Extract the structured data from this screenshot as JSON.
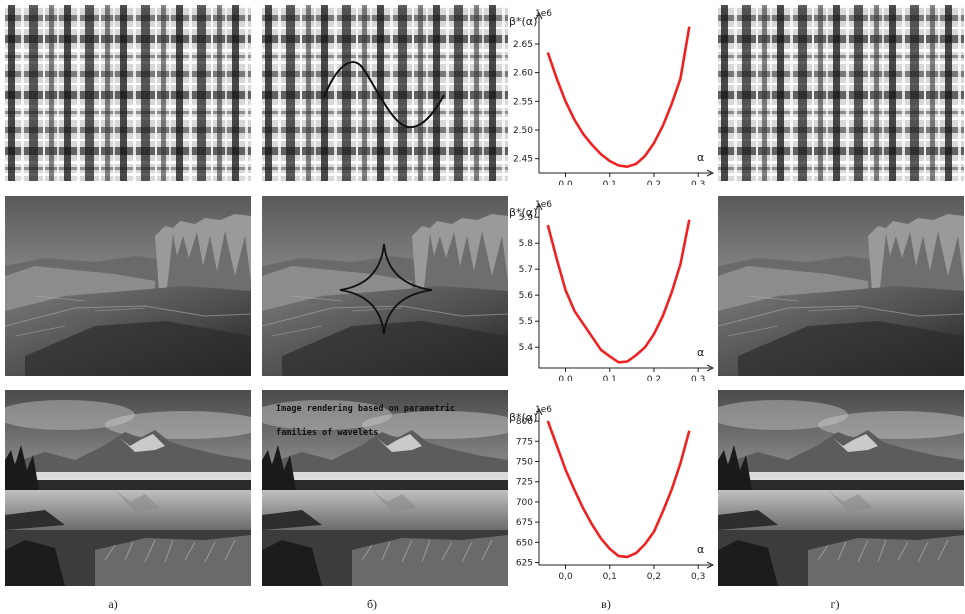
{
  "captions": [
    "а)",
    "б)",
    "в)",
    "г)"
  ],
  "overlay_text": {
    "line1": "Image rendering based on parametric",
    "line2": "families of wavelets"
  },
  "chart_data": [
    {
      "type": "line",
      "ylabel": "β*(α)",
      "xlabel": "α",
      "offset_label": "1e6",
      "color": "#ee2222",
      "x": [
        -0.04,
        -0.02,
        0.0,
        0.02,
        0.04,
        0.06,
        0.08,
        0.1,
        0.12,
        0.14,
        0.16,
        0.18,
        0.2,
        0.22,
        0.24,
        0.26,
        0.28
      ],
      "y": [
        2.635,
        2.59,
        2.55,
        2.518,
        2.493,
        2.474,
        2.458,
        2.446,
        2.438,
        2.436,
        2.441,
        2.455,
        2.477,
        2.507,
        2.545,
        2.59,
        2.68
      ],
      "xlim": [
        -0.06,
        0.32
      ],
      "ylim": [
        2.425,
        2.69
      ],
      "xticks": [
        0.0,
        0.1,
        0.2,
        0.3
      ],
      "xtick_labels": [
        "0,0",
        "0,1",
        "0,2",
        "0,3"
      ],
      "yticks": [
        2.45,
        2.5,
        2.55,
        2.6,
        2.65
      ],
      "ytick_labels": [
        "2.45",
        "2.50",
        "2.55",
        "2.60",
        "2.65"
      ]
    },
    {
      "type": "line",
      "ylabel": "β*(α)",
      "xlabel": "α",
      "offset_label": "1e6",
      "color": "#ee2222",
      "x": [
        -0.04,
        -0.02,
        0.0,
        0.02,
        0.04,
        0.06,
        0.08,
        0.1,
        0.12,
        0.14,
        0.16,
        0.18,
        0.2,
        0.22,
        0.24,
        0.26,
        0.28
      ],
      "y": [
        5.87,
        5.74,
        5.62,
        5.54,
        5.49,
        5.44,
        5.39,
        5.365,
        5.342,
        5.345,
        5.37,
        5.4,
        5.45,
        5.52,
        5.61,
        5.72,
        5.89
      ],
      "xlim": [
        -0.06,
        0.32
      ],
      "ylim": [
        5.32,
        5.92
      ],
      "xticks": [
        0.0,
        0.1,
        0.2,
        0.3
      ],
      "xtick_labels": [
        "0,0",
        "0,1",
        "0,2",
        "0,3"
      ],
      "yticks": [
        5.4,
        5.5,
        5.6,
        5.7,
        5.8,
        5.9
      ],
      "ytick_labels": [
        "5.4",
        "5.5",
        "5.6",
        "5.7",
        "5.8",
        "5.9"
      ]
    },
    {
      "type": "line",
      "ylabel": "β*(α)",
      "xlabel": "α",
      "offset_label": "1e6",
      "color": "#ee2222",
      "x": [
        -0.04,
        -0.02,
        0.0,
        0.02,
        0.04,
        0.06,
        0.08,
        0.1,
        0.12,
        0.14,
        0.16,
        0.18,
        0.2,
        0.22,
        0.24,
        0.26,
        0.28
      ],
      "y": [
        800,
        770,
        740,
        715,
        692,
        672,
        655,
        642,
        633,
        632,
        637,
        648,
        663,
        688,
        715,
        748,
        788
      ],
      "xlim": [
        -0.06,
        0.32
      ],
      "ylim": [
        622,
        805
      ],
      "xticks": [
        0.0,
        0.1,
        0.2,
        0.3
      ],
      "xtick_labels": [
        "0,0",
        "0,1",
        "0,2",
        "0,3"
      ],
      "yticks": [
        625,
        650,
        675,
        700,
        725,
        750,
        775,
        800
      ],
      "ytick_labels": [
        "625",
        "650",
        "675",
        "700",
        "725",
        "750",
        "775",
        "800"
      ]
    }
  ]
}
